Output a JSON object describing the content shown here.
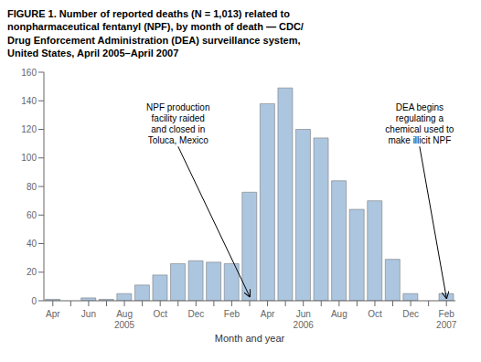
{
  "chart_data": {
    "type": "bar",
    "title": "FIGURE 1. Number of reported deaths (N = 1,013) related to\nnonpharmaceutical fentanyl (NPF), by month of death — CDC/\nDrug Enforcement Administration (DEA) surveillance system,\nUnited States, April 2005–April 2007",
    "x_label": "Month and year",
    "categories": [
      "Apr",
      null,
      "Jun",
      null,
      "Aug\n2005",
      null,
      "Oct",
      null,
      "Dec",
      null,
      "Feb",
      null,
      "Apr",
      null,
      "Jun\n2006",
      null,
      "Aug",
      null,
      "Oct",
      null,
      "Dec",
      null,
      "Feb\n2007"
    ],
    "values": [
      1,
      0,
      2,
      1,
      5,
      11,
      18,
      26,
      28,
      27,
      26,
      76,
      138,
      149,
      120,
      114,
      84,
      64,
      70,
      29,
      5,
      0,
      5
    ],
    "color": "#adc6e0",
    "ylim": [
      0,
      160
    ],
    "yticks": [
      0,
      20,
      40,
      60,
      80,
      100,
      120,
      140,
      160
    ],
    "grid": false,
    "annotations": [
      {
        "text": "NPF production\nfacility raided\nand closed in\nToluca, Mexico",
        "x": 11,
        "y": 3,
        "text_x": 7.0,
        "text_y": 108
      },
      {
        "text": "DEA begins\nregulating a\nchemical used to\nmake illicit NPF",
        "x": 22,
        "y": 2,
        "text_x": 20.5,
        "text_y": 108
      }
    ]
  }
}
